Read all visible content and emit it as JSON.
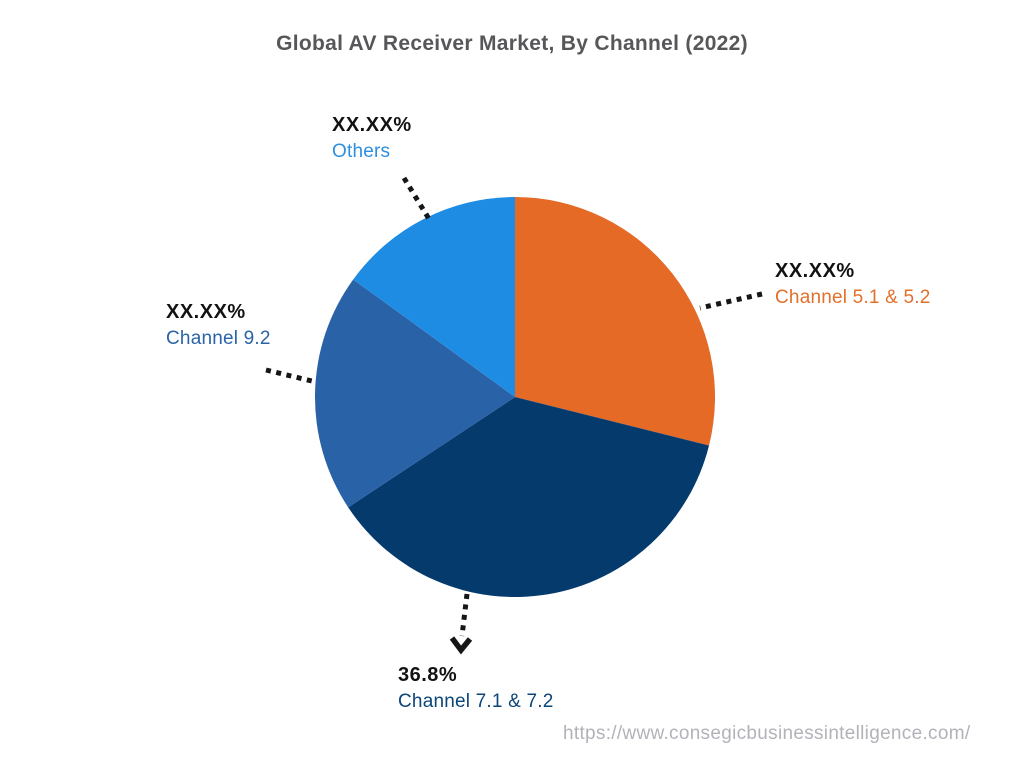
{
  "title": "Global AV Receiver Market, By Channel (2022)",
  "watermark": "https://www.consegicbusinessintelligence.com/",
  "chart_data": {
    "type": "pie",
    "title": "Global AV Receiver Market, By Channel (2022)",
    "start_angle_deg": 0,
    "direction": "clockwise",
    "legend_position": "none",
    "leader_line_color": "#161616",
    "slices": [
      {
        "label": "Channel 5.1 & 5.2",
        "display_pct": "XX.XX%",
        "value": 28.9,
        "color": "#e56a25",
        "label_color": "#e2702b",
        "callout_side": "right"
      },
      {
        "label": "Channel 7.1 & 7.2",
        "display_pct": "36.8%",
        "value": 36.8,
        "color": "#053a6c",
        "label_color": "#0c4577",
        "callout_side": "bottom"
      },
      {
        "label": "Channel 9.2",
        "display_pct": "XX.XX%",
        "value": 19.3,
        "color": "#2a62a7",
        "label_color": "#2a63a9",
        "callout_side": "left"
      },
      {
        "label": "Others",
        "display_pct": "XX.XX%",
        "value": 15.0,
        "color": "#1f8ce4",
        "label_color": "#2e8fe0",
        "callout_side": "top-left"
      }
    ]
  }
}
